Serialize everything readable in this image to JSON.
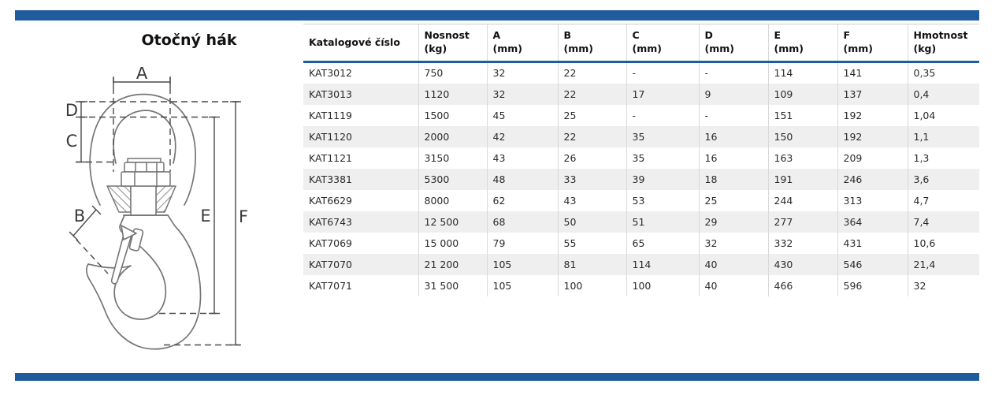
{
  "page": {
    "title": "Otočný hák"
  },
  "colors": {
    "accent_blue": "#1f5c9e",
    "row_alt_background": "#efefef",
    "grid_line": "#d9d9d9"
  },
  "drawing": {
    "name": "swivel-hook-technical-drawing",
    "labels": {
      "a": "A",
      "b": "B",
      "c": "C",
      "d": "D",
      "e": "E",
      "f": "F"
    }
  },
  "table": {
    "columns": [
      {
        "label": "Katalogové číslo",
        "unit": ""
      },
      {
        "label": "Nosnost",
        "unit": "(kg)"
      },
      {
        "label": "A",
        "unit": "(mm)"
      },
      {
        "label": "B",
        "unit": "(mm)"
      },
      {
        "label": "C",
        "unit": "(mm)"
      },
      {
        "label": "D",
        "unit": "(mm)"
      },
      {
        "label": "E",
        "unit": "(mm)"
      },
      {
        "label": "F",
        "unit": "(mm)"
      },
      {
        "label": "Hmotnost",
        "unit": "(kg)"
      }
    ],
    "rows": [
      [
        "KAT3012",
        "750",
        "32",
        "22",
        "-",
        "-",
        "114",
        "141",
        "0,35"
      ],
      [
        "KAT3013",
        "1120",
        "32",
        "22",
        "17",
        "9",
        "109",
        "137",
        "0,4"
      ],
      [
        "KAT1119",
        "1500",
        "45",
        "25",
        "-",
        "-",
        "151",
        "192",
        "1,04"
      ],
      [
        "KAT1120",
        "2000",
        "42",
        "22",
        "35",
        "16",
        "150",
        "192",
        "1,1"
      ],
      [
        "KAT1121",
        "3150",
        "43",
        "26",
        "35",
        "16",
        "163",
        "209",
        "1,3"
      ],
      [
        "KAT3381",
        "5300",
        "48",
        "33",
        "39",
        "18",
        "191",
        "246",
        "3,6"
      ],
      [
        "KAT6629",
        "8000",
        "62",
        "43",
        "53",
        "25",
        "244",
        "313",
        "4,7"
      ],
      [
        "KAT6743",
        "12 500",
        "68",
        "50",
        "51",
        "29",
        "277",
        "364",
        "7,4"
      ],
      [
        "KAT7069",
        "15 000",
        "79",
        "55",
        "65",
        "32",
        "332",
        "431",
        "10,6"
      ],
      [
        "KAT7070",
        "21 200",
        "105",
        "81",
        "114",
        "40",
        "430",
        "546",
        "21,4"
      ],
      [
        "KAT7071",
        "31 500",
        "105",
        "100",
        "100",
        "40",
        "466",
        "596",
        "32"
      ]
    ]
  }
}
